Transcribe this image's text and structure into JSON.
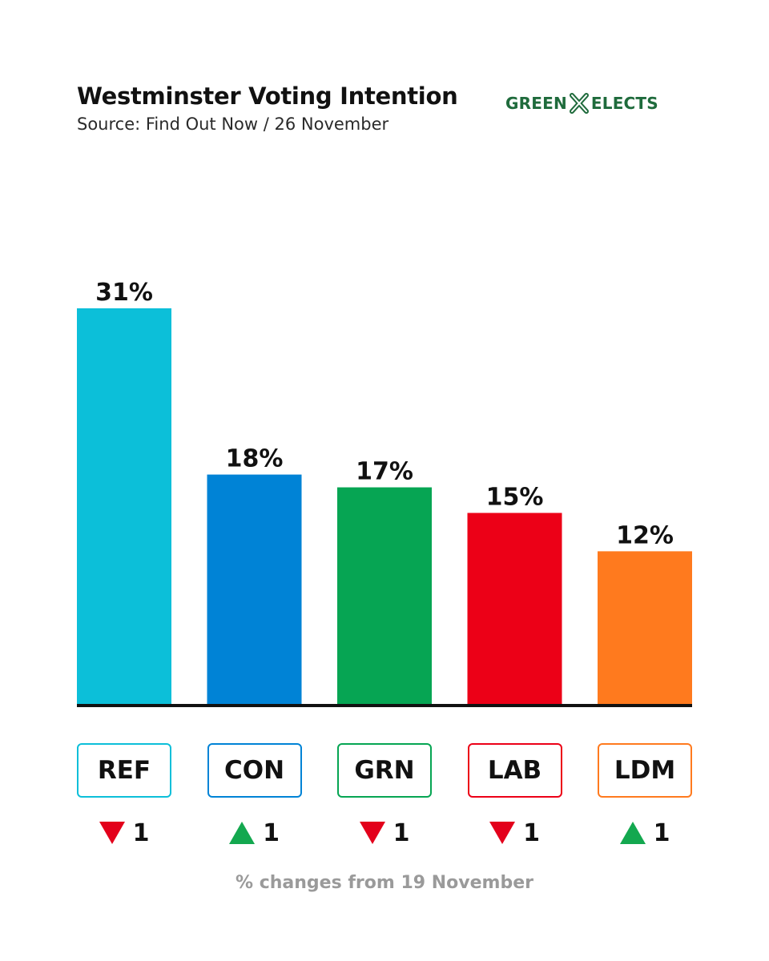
{
  "header": {
    "title": "Westminster Voting Intention",
    "subtitle": "Source: Find Out Now / 26 November"
  },
  "logo": {
    "left_text": "GREEN",
    "right_text": "ELECTS",
    "color": "#1f6b3c"
  },
  "chart_data": {
    "type": "bar",
    "title": "Westminster Voting Intention",
    "categories": [
      "REF",
      "CON",
      "GRN",
      "LAB",
      "LDM"
    ],
    "values": [
      31,
      18,
      17,
      15,
      12
    ],
    "value_labels": [
      "31%",
      "18%",
      "17%",
      "15%",
      "12%"
    ],
    "colors": [
      "#0cbfd9",
      "#0083d6",
      "#06a553",
      "#ec0017",
      "#ff7a1e"
    ],
    "ylim": [
      0,
      31
    ],
    "xlabel": "",
    "ylabel": "",
    "changes": [
      {
        "direction": "down",
        "value": "1"
      },
      {
        "direction": "up",
        "value": "1"
      },
      {
        "direction": "down",
        "value": "1"
      },
      {
        "direction": "down",
        "value": "1"
      },
      {
        "direction": "up",
        "value": "1"
      }
    ]
  },
  "footnote": "% changes from 19 November"
}
